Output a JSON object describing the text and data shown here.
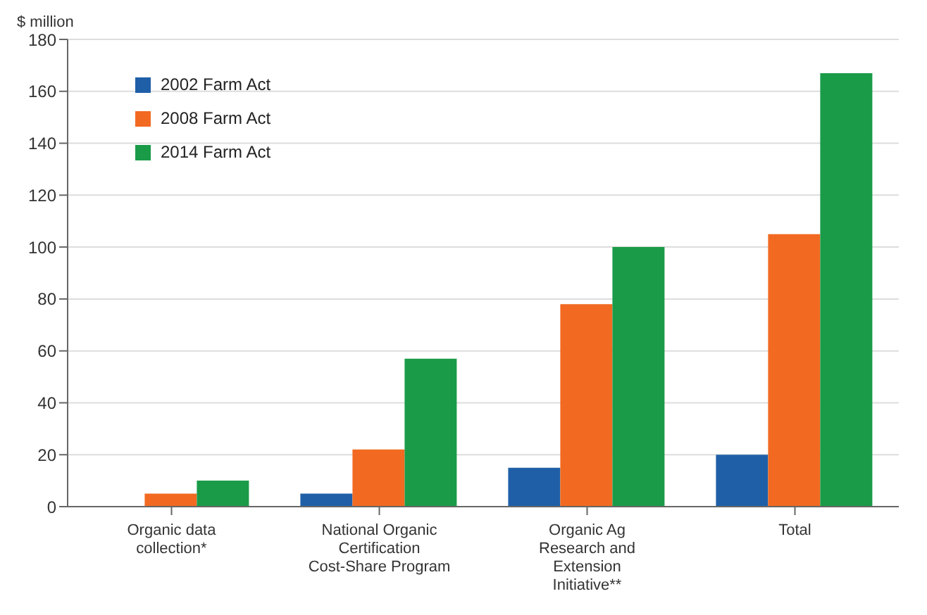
{
  "chart_data": {
    "type": "bar",
    "ylabel": "$ million",
    "categories": [
      "Organic data collection*",
      "National Organic Certification Cost-Share Program",
      "Organic Ag Research and Extension Initiative**",
      "Total"
    ],
    "series": [
      {
        "name": "2002 Farm Act",
        "color": "#1f5fa8",
        "values": [
          null,
          5,
          15,
          20
        ]
      },
      {
        "name": "2008 Farm Act",
        "color": "#f26a21",
        "values": [
          5,
          22,
          78,
          105
        ]
      },
      {
        "name": "2014 Farm Act",
        "color": "#1a9b48",
        "values": [
          10,
          57,
          100,
          167
        ]
      }
    ],
    "ylim": [
      0,
      180
    ],
    "yticks": [
      0,
      20,
      40,
      60,
      80,
      100,
      120,
      140,
      160,
      180
    ],
    "grid": "y",
    "legend": "top left"
  }
}
